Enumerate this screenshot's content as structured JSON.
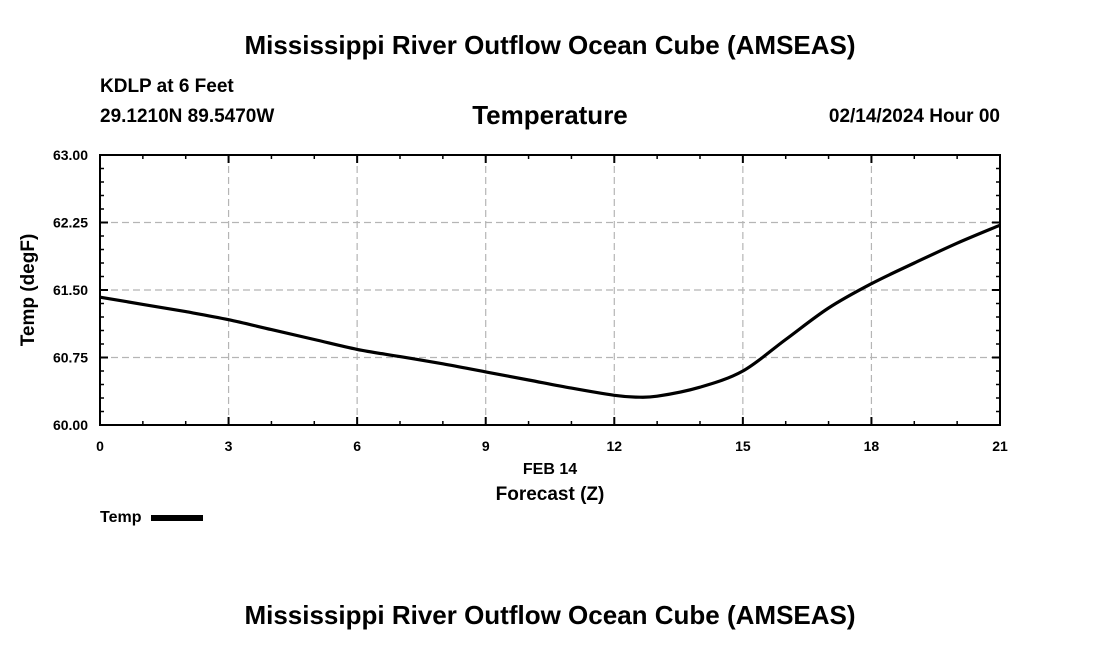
{
  "page": {
    "title_top": "Mississippi River Outflow Ocean Cube (AMSEAS)",
    "title_bottom": "Mississippi River Outflow Ocean Cube (AMSEAS)",
    "station": "KDLP at 6 Feet",
    "coordinates": "29.1210N  89.5470W",
    "subtitle": "Temperature",
    "datetime": "02/14/2024 Hour 00"
  },
  "chart_data": {
    "type": "line",
    "title": "Temperature",
    "xlabel": "Forecast (Z)",
    "xlabel_date": "FEB 14",
    "ylabel": "Temp (degF)",
    "xlim": [
      0,
      21
    ],
    "ylim": [
      60.0,
      63.0
    ],
    "x_ticks": [
      0,
      3,
      6,
      9,
      12,
      15,
      18,
      21
    ],
    "x_tick_labels": [
      "0",
      "3",
      "6",
      "9",
      "12",
      "15",
      "18",
      "21"
    ],
    "y_ticks": [
      60.0,
      60.75,
      61.5,
      62.25,
      63.0
    ],
    "y_tick_labels": [
      "60.00",
      "60.75",
      "61.50",
      "62.25",
      "63.00"
    ],
    "grid": true,
    "legend_position": "bottom-left",
    "series": [
      {
        "name": "Temp",
        "color": "#000000",
        "x": [
          0,
          1,
          2,
          3,
          4,
          5,
          6,
          7,
          8,
          9,
          10,
          11,
          12,
          12.5,
          13,
          14,
          15,
          16,
          17,
          18,
          19,
          20,
          21
        ],
        "values": [
          61.42,
          61.34,
          61.26,
          61.17,
          61.06,
          60.95,
          60.84,
          60.76,
          60.68,
          60.59,
          60.5,
          60.41,
          60.33,
          60.31,
          60.32,
          60.42,
          60.6,
          60.95,
          61.3,
          61.57,
          61.8,
          62.02,
          62.22
        ]
      }
    ]
  }
}
